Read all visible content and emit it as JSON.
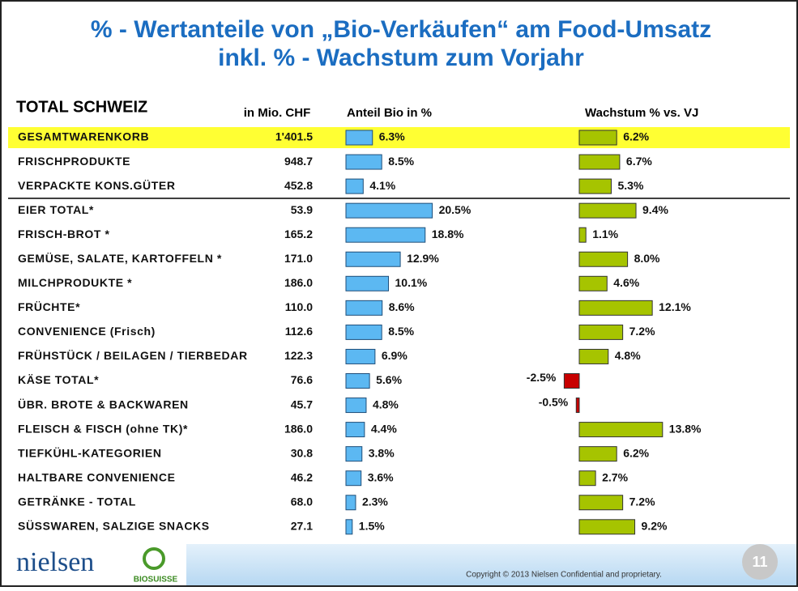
{
  "chart_data": {
    "type": "bar",
    "title": "% - Wertanteile von „Bio-Verkäufen“ am Food-Umsatz",
    "subtitle": "inkl. % - Wachstum zum Vorjahr",
    "row_header": "TOTAL SCHWEIZ",
    "highlight_row": 0,
    "highlight_color": "#ffff33",
    "categories": [
      "GESAMTWARENKORB",
      "FRISCHPRODUKTE",
      "VERPACKTE KONS.GÜTER",
      "EIER TOTAL*",
      "FRISCH-BROT *",
      "GEMÜSE, SALATE, KARTOFFELN *",
      "MILCHPRODUKTE *",
      "FRÜCHTE*",
      "CONVENIENCE (Frisch)",
      "FRÜHSTÜCK / BEILAGEN / TIERBEDAR",
      "KÄSE TOTAL*",
      "ÜBR. BROTE & BACKWAREN",
      "FLEISCH & FISCH (ohne TK)*",
      "TIEFKÜHL-KATEGORIEN",
      "HALTBARE CONVENIENCE",
      "GETRÄNKE - TOTAL",
      "SÜSSWAREN, SALZIGE SNACKS"
    ],
    "series": [
      {
        "name": "in Mio. CHF",
        "values": [
          1401.5,
          948.7,
          452.8,
          53.9,
          165.2,
          171.0,
          186.0,
          110.0,
          112.6,
          122.3,
          76.6,
          45.7,
          186.0,
          30.8,
          46.2,
          68.0,
          27.1
        ],
        "value_labels": [
          "1'401.5",
          "948.7",
          "452.8",
          "53.9",
          "165.2",
          "171.0",
          "186.0",
          "110.0",
          "112.6",
          "122.3",
          "76.6",
          "45.7",
          "186.0",
          "30.8",
          "46.2",
          "68.0",
          "27.1"
        ]
      },
      {
        "name": "Anteil  Bio in %",
        "color": "#5cb8f2",
        "values": [
          6.3,
          8.5,
          4.1,
          20.5,
          18.8,
          12.9,
          10.1,
          8.6,
          8.5,
          6.9,
          5.6,
          4.8,
          4.4,
          3.8,
          3.6,
          2.3,
          1.5
        ],
        "value_labels": [
          "6.3%",
          "8.5%",
          "4.1%",
          "20.5%",
          "18.8%",
          "12.9%",
          "10.1%",
          "8.6%",
          "8.5%",
          "6.9%",
          "5.6%",
          "4.8%",
          "4.4%",
          "3.8%",
          "3.6%",
          "2.3%",
          "1.5%"
        ]
      },
      {
        "name": "Wachstum  % vs. VJ",
        "color": "#a6c400",
        "negative_color": "#c80000",
        "values": [
          6.2,
          6.7,
          5.3,
          9.4,
          1.1,
          8.0,
          4.6,
          12.1,
          7.2,
          4.8,
          -2.5,
          -0.5,
          13.8,
          6.2,
          2.7,
          7.2,
          9.2
        ],
        "value_labels": [
          "6.2%",
          "6.7%",
          "5.3%",
          "9.4%",
          "1.1%",
          "8.0%",
          "4.6%",
          "12.1%",
          "7.2%",
          "4.8%",
          "-2.5%",
          "-0.5%",
          "13.8%",
          "6.2%",
          "2.7%",
          "7.2%",
          "9.2%"
        ]
      }
    ]
  },
  "footer": {
    "logo": "nielsen",
    "partner": "BIOSUISSE",
    "copyright": "Copyright © 2013 Nielsen Confidential and proprietary.",
    "page": "11"
  }
}
